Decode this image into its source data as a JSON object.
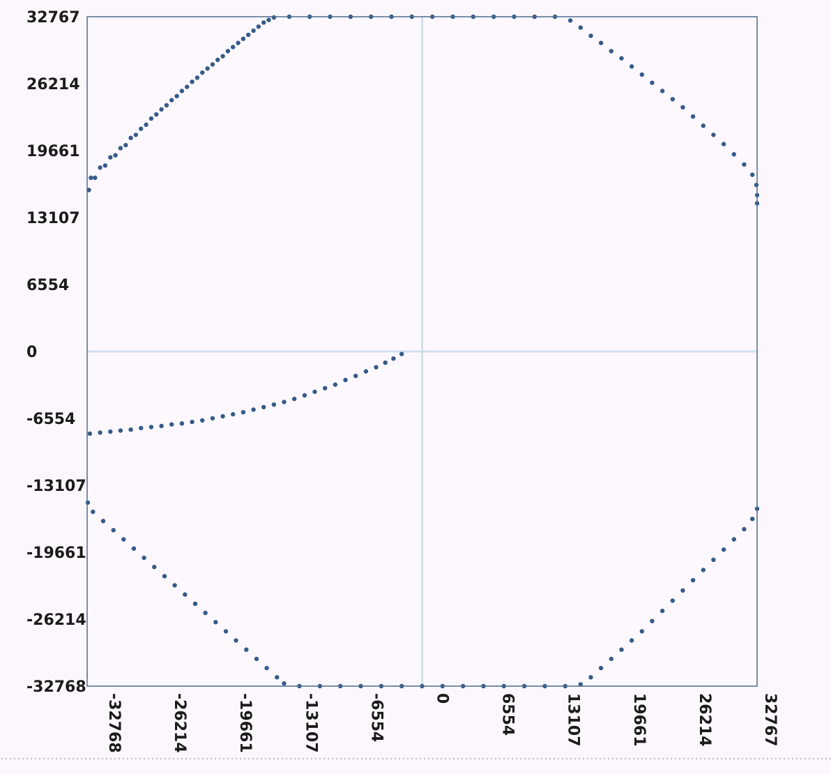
{
  "colors": {
    "background": "#fcf7fc",
    "plot_background": "#fdf8fd",
    "frame": "#4b6a8f",
    "axis_lines": "#cfe1ee",
    "points": "#355b89",
    "tick_text": "#1b1b1b"
  },
  "chart_data": {
    "type": "scatter",
    "title": "",
    "xlabel": "",
    "ylabel": "",
    "xlim": [
      -32768,
      32767
    ],
    "ylim": [
      -32768,
      32767
    ],
    "grid": false,
    "zero_lines": true,
    "x_ticks": [
      "-32768",
      "-26214",
      "-19661",
      "-13107",
      "-6554",
      "0",
      "6554",
      "13107",
      "19661",
      "26214",
      "32767"
    ],
    "y_ticks": [
      "32767",
      "26214",
      "19661",
      "13107",
      "6554",
      "0",
      "-6554",
      "-13107",
      "-19661",
      "-26214",
      "-32768"
    ],
    "series": [
      {
        "points": [
          [
            -2000,
            -250
          ],
          [
            -2800,
            -700
          ],
          [
            -3600,
            -1100
          ],
          [
            -4500,
            -1550
          ],
          [
            -5500,
            -1950
          ],
          [
            -6500,
            -2400
          ],
          [
            -7500,
            -2800
          ],
          [
            -8500,
            -3250
          ],
          [
            -9500,
            -3600
          ],
          [
            -10500,
            -3950
          ],
          [
            -11500,
            -4300
          ],
          [
            -12500,
            -4650
          ],
          [
            -13500,
            -4950
          ],
          [
            -14500,
            -5200
          ],
          [
            -15500,
            -5450
          ],
          [
            -16500,
            -5700
          ],
          [
            -17500,
            -5950
          ],
          [
            -18500,
            -6150
          ],
          [
            -19500,
            -6350
          ],
          [
            -20500,
            -6550
          ],
          [
            -21500,
            -6750
          ],
          [
            -22500,
            -6900
          ],
          [
            -23500,
            -7050
          ],
          [
            -24500,
            -7150
          ],
          [
            -25500,
            -7300
          ],
          [
            -26500,
            -7400
          ],
          [
            -27500,
            -7500
          ],
          [
            -28500,
            -7650
          ],
          [
            -29500,
            -7750
          ],
          [
            -30500,
            -7850
          ],
          [
            -31500,
            -7950
          ],
          [
            -32500,
            -8050
          ],
          [
            -32600,
            15800
          ],
          [
            -32000,
            17000
          ],
          [
            -31000,
            18200
          ],
          [
            -30000,
            19200
          ],
          [
            -29000,
            20200
          ],
          [
            -28000,
            21200
          ],
          [
            -27000,
            22200
          ],
          [
            -26000,
            23200
          ],
          [
            -25000,
            24100
          ],
          [
            -24000,
            25000
          ],
          [
            -23000,
            25900
          ],
          [
            -22000,
            26800
          ],
          [
            -21000,
            27700
          ],
          [
            -20000,
            28550
          ],
          [
            -19000,
            29400
          ],
          [
            -18000,
            30200
          ],
          [
            -17000,
            31000
          ],
          [
            -16000,
            31800
          ],
          [
            -15000,
            32450
          ],
          [
            -32400,
            17000
          ],
          [
            -31500,
            18000
          ],
          [
            -30500,
            19000
          ],
          [
            -29500,
            19900
          ],
          [
            -28500,
            20900
          ],
          [
            -27500,
            21800
          ],
          [
            -26500,
            22800
          ],
          [
            -25500,
            23700
          ],
          [
            -24500,
            24600
          ],
          [
            -23500,
            25500
          ],
          [
            -22500,
            26400
          ],
          [
            -21500,
            27300
          ],
          [
            -20500,
            28100
          ],
          [
            -19500,
            28900
          ],
          [
            -18500,
            29800
          ],
          [
            -17500,
            30600
          ],
          [
            -16500,
            31400
          ],
          [
            -15500,
            32200
          ],
          [
            -14500,
            32700
          ],
          [
            -13000,
            32767
          ],
          [
            -11000,
            32767
          ],
          [
            -9000,
            32767
          ],
          [
            -7000,
            32767
          ],
          [
            -5000,
            32767
          ],
          [
            -3000,
            32767
          ],
          [
            -1000,
            32767
          ],
          [
            1000,
            32767
          ],
          [
            3000,
            32767
          ],
          [
            5000,
            32767
          ],
          [
            7000,
            32767
          ],
          [
            9000,
            32767
          ],
          [
            11000,
            32767
          ],
          [
            13000,
            32767
          ],
          [
            14500,
            32400
          ],
          [
            15500,
            31700
          ],
          [
            16500,
            30900
          ],
          [
            17500,
            30200
          ],
          [
            18500,
            29400
          ],
          [
            19500,
            28700
          ],
          [
            20500,
            27900
          ],
          [
            21500,
            27100
          ],
          [
            22500,
            26300
          ],
          [
            23500,
            25500
          ],
          [
            24500,
            24700
          ],
          [
            25500,
            23900
          ],
          [
            26500,
            23000
          ],
          [
            27500,
            22100
          ],
          [
            28500,
            21200
          ],
          [
            29500,
            20300
          ],
          [
            30500,
            19300
          ],
          [
            31500,
            18300
          ],
          [
            32300,
            17300
          ],
          [
            32700,
            16300
          ],
          [
            32767,
            15300
          ],
          [
            32767,
            14500
          ],
          [
            -32700,
            -14800
          ],
          [
            -32200,
            -15700
          ],
          [
            -31200,
            -16600
          ],
          [
            -30200,
            -17500
          ],
          [
            -29200,
            -18400
          ],
          [
            -28200,
            -19300
          ],
          [
            -27200,
            -20200
          ],
          [
            -26200,
            -21100
          ],
          [
            -25200,
            -22000
          ],
          [
            -24200,
            -22900
          ],
          [
            -23200,
            -23800
          ],
          [
            -22200,
            -24700
          ],
          [
            -21200,
            -25600
          ],
          [
            -20200,
            -26500
          ],
          [
            -19200,
            -27400
          ],
          [
            -18200,
            -28300
          ],
          [
            -17200,
            -29200
          ],
          [
            -16200,
            -30100
          ],
          [
            -15200,
            -31000
          ],
          [
            -14200,
            -31900
          ],
          [
            -13500,
            -32500
          ],
          [
            -12000,
            -32767
          ],
          [
            -10000,
            -32767
          ],
          [
            -8000,
            -32767
          ],
          [
            -6000,
            -32767
          ],
          [
            -4000,
            -32767
          ],
          [
            -2000,
            -32767
          ],
          [
            0,
            -32767
          ],
          [
            2000,
            -32767
          ],
          [
            4000,
            -32767
          ],
          [
            6000,
            -32767
          ],
          [
            8000,
            -32767
          ],
          [
            10000,
            -32767
          ],
          [
            12000,
            -32767
          ],
          [
            14000,
            -32767
          ],
          [
            15500,
            -32600
          ],
          [
            16500,
            -31900
          ],
          [
            17500,
            -31000
          ],
          [
            18500,
            -30100
          ],
          [
            19500,
            -29200
          ],
          [
            20500,
            -28300
          ],
          [
            21500,
            -27400
          ],
          [
            22500,
            -26400
          ],
          [
            23500,
            -25400
          ],
          [
            24500,
            -24400
          ],
          [
            25500,
            -23400
          ],
          [
            26500,
            -22400
          ],
          [
            27500,
            -21400
          ],
          [
            28500,
            -20400
          ],
          [
            29500,
            -19400
          ],
          [
            30500,
            -18400
          ],
          [
            31500,
            -17400
          ],
          [
            32300,
            -16400
          ],
          [
            32767,
            -15400
          ]
        ]
      }
    ]
  }
}
